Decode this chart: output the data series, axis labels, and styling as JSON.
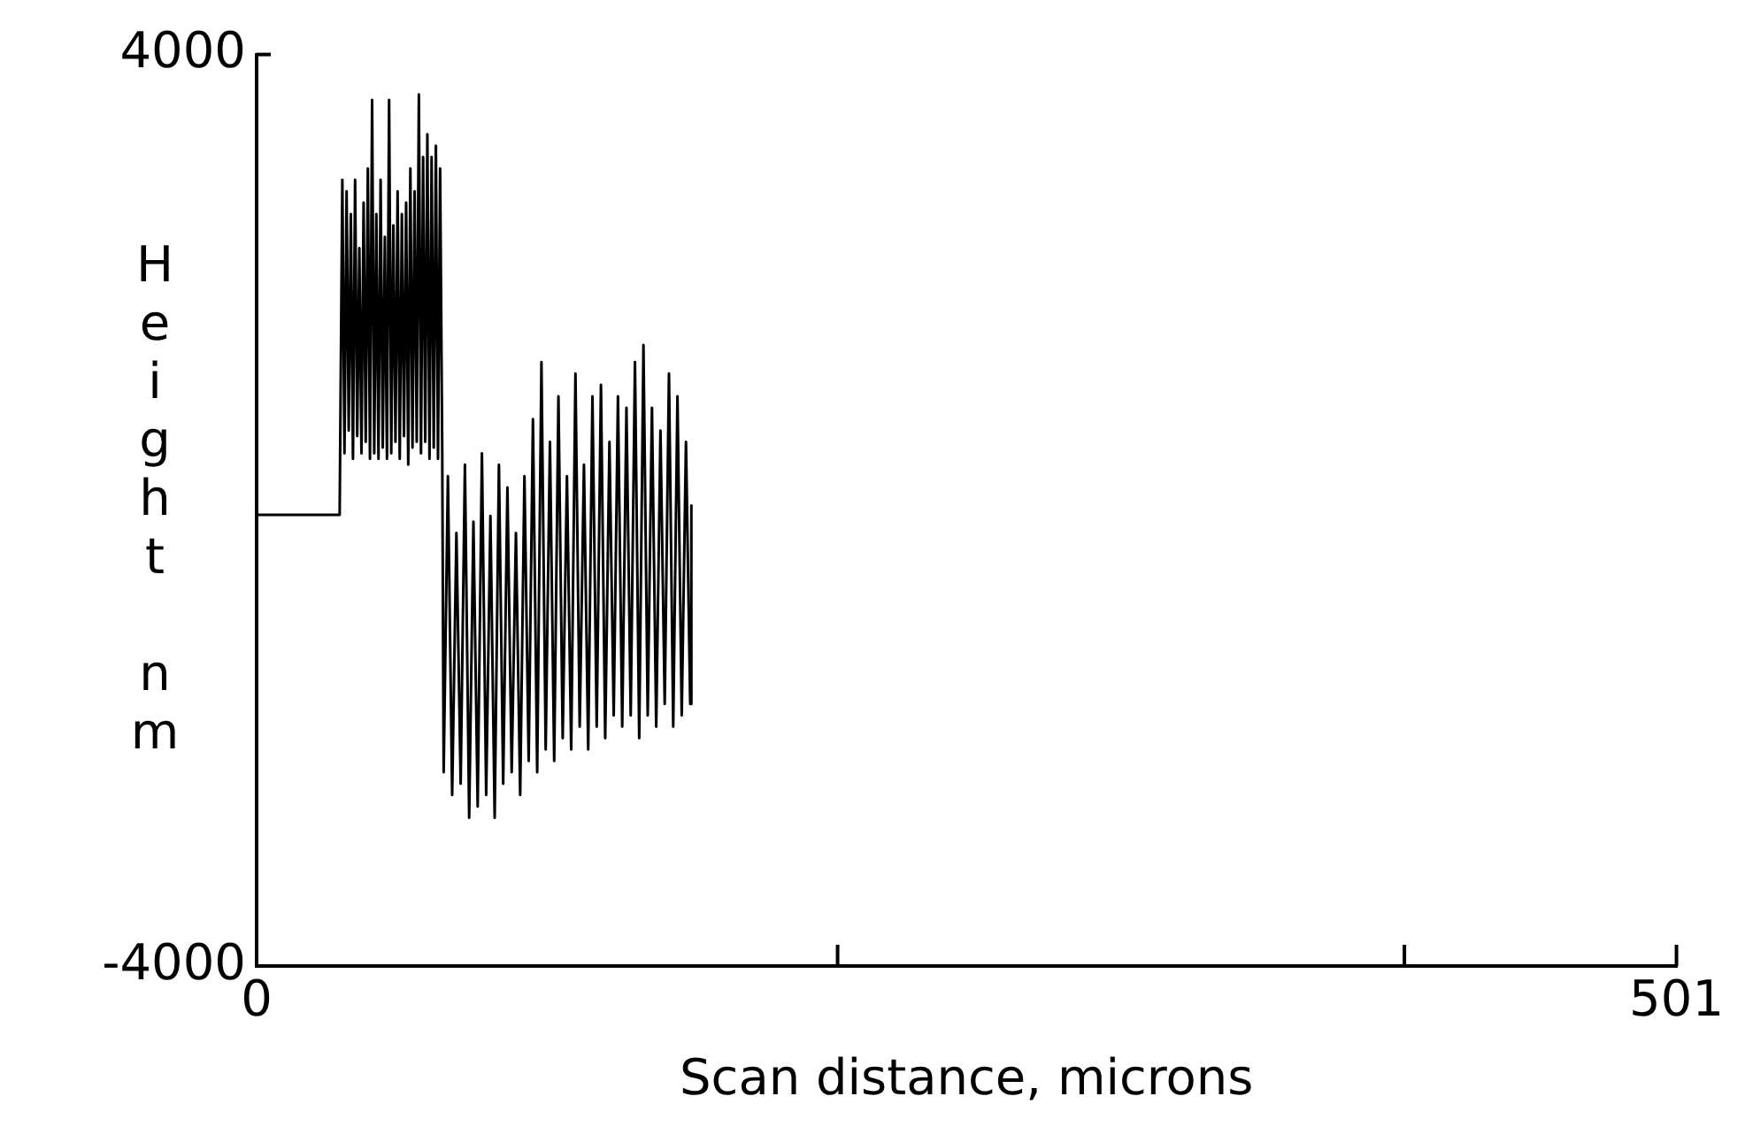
{
  "chart_data": {
    "type": "line",
    "xlabel": "Scan distance, microns",
    "ylabel": "Height nm",
    "xlim": [
      0,
      501
    ],
    "xticks": [
      0,
      {
        "value": 205,
        "label": null
      },
      {
        "value": 405,
        "label": null
      },
      501
    ],
    "ylim": [
      -4000,
      4000
    ],
    "yticks": [
      -4000,
      4000
    ],
    "color": "#000000",
    "marker": "none",
    "line_style": "solid",
    "x": [
      0,
      29.3,
      29.5,
      30.25,
      31,
      31.75,
      32.5,
      33.25,
      34,
      34.75,
      35.5,
      36.25,
      37,
      37.75,
      38.5,
      39.25,
      40,
      40.75,
      41.5,
      42.25,
      43,
      43.75,
      44.5,
      45.25,
      46,
      46.75,
      47.5,
      48.25,
      49,
      49.75,
      50.5,
      51.25,
      52,
      52.75,
      53.5,
      54.25,
      55,
      55.75,
      56.5,
      57.25,
      58,
      58.75,
      59.5,
      60.25,
      61,
      61.75,
      62.5,
      63.25,
      64,
      64.75,
      65.5,
      66,
      67.5,
      69,
      70.5,
      72,
      73.5,
      75,
      76.5,
      78,
      79.5,
      81,
      82.5,
      84,
      85.5,
      87,
      88.5,
      90,
      91.5,
      93,
      94.5,
      96,
      97.5,
      99,
      100.5,
      102,
      103.5,
      105,
      106.5,
      108,
      109.5,
      111,
      112.5,
      114,
      115.5,
      117,
      118.5,
      120,
      121.5,
      123,
      124.5,
      126,
      127.5,
      129,
      130.5,
      132,
      133.5,
      135,
      136.5,
      138,
      139.5,
      141,
      142.5,
      144,
      145.5,
      147,
      148.5,
      150,
      151.5,
      153,
      153.4
    ],
    "values": [
      -40,
      -40,
      600,
      2900,
      500,
      2800,
      700,
      2600,
      450,
      2900,
      650,
      2300,
      500,
      2700,
      600,
      3000,
      450,
      3600,
      500,
      2600,
      450,
      2900,
      550,
      2400,
      450,
      3600,
      500,
      2500,
      600,
      2800,
      450,
      2600,
      650,
      2700,
      400,
      3000,
      550,
      2800,
      600,
      3650,
      500,
      3100,
      600,
      3300,
      450,
      3100,
      550,
      3200,
      450,
      3000,
      500,
      -2300,
      300,
      -2500,
      -200,
      -2400,
      400,
      -2700,
      -100,
      -2600,
      500,
      -2500,
      -50,
      -2700,
      400,
      -2400,
      200,
      -2300,
      -200,
      -2500,
      300,
      -2200,
      800,
      -2300,
      1300,
      -2100,
      600,
      -2200,
      1000,
      -2000,
      300,
      -2100,
      1200,
      -1900,
      400,
      -2100,
      1000,
      -1900,
      1100,
      -2000,
      600,
      -1800,
      1000,
      -1900,
      900,
      -1800,
      1300,
      -2000,
      1450,
      -1800,
      900,
      -1900,
      700,
      -1700,
      1200,
      -1900,
      1000,
      -1800,
      600,
      -1700,
      50
    ]
  }
}
